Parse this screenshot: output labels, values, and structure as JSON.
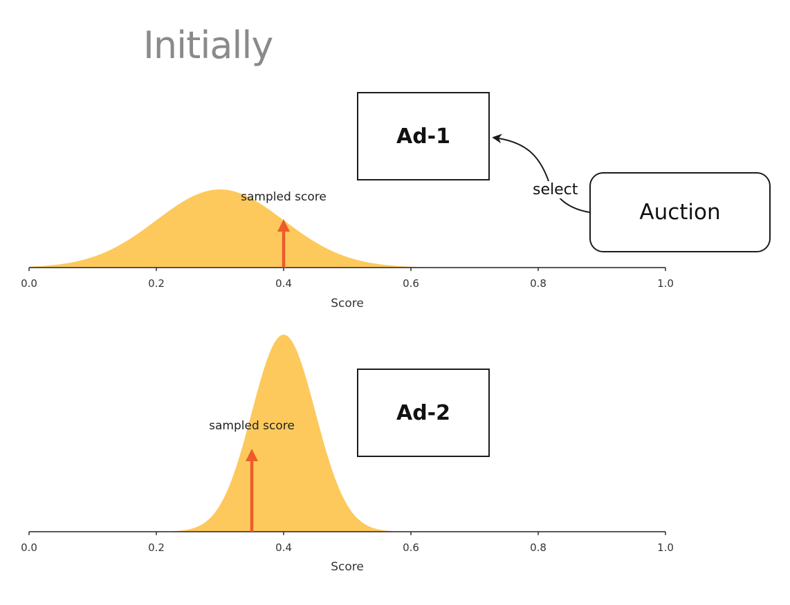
{
  "title": "Initially",
  "ads": [
    {
      "label": "Ad-1"
    },
    {
      "label": "Ad-2"
    }
  ],
  "auction_label": "Auction",
  "select_label": "select",
  "colors": {
    "fill": "#fdc95c",
    "arrow": "#ef5a2a",
    "title": "#8a8a8a"
  },
  "chart_data": [
    {
      "type": "area",
      "distribution": "normal",
      "mean": 0.3,
      "std": 0.1,
      "xlabel": "Score",
      "xlim": [
        0,
        1
      ],
      "xticks": [
        "0.0",
        "0.2",
        "0.4",
        "0.6",
        "0.8",
        "1.0"
      ],
      "annotation": {
        "text": "sampled score",
        "x": 0.4
      }
    },
    {
      "type": "area",
      "distribution": "normal",
      "mean": 0.4,
      "std": 0.05,
      "xlabel": "Score",
      "xlim": [
        0,
        1
      ],
      "xticks": [
        "0.0",
        "0.2",
        "0.4",
        "0.6",
        "0.8",
        "1.0"
      ],
      "annotation": {
        "text": "sampled score",
        "x": 0.35
      }
    }
  ]
}
